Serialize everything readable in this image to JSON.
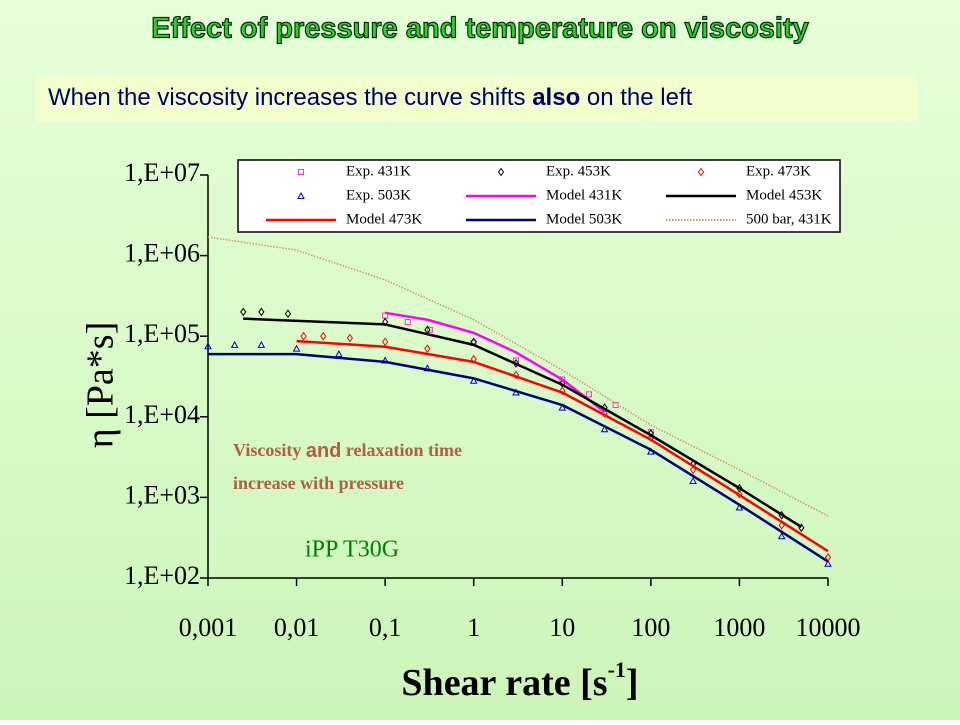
{
  "chart_data": {
    "type": "line",
    "title": "Effect of pressure and temperature on viscosity",
    "subtitle_parts": [
      "When the viscosity increases the curve shifts ",
      "also",
      " on the left"
    ],
    "x_label": "Shear rate [s",
    "x_label_sup": "-1",
    "x_label_end": "]",
    "y_label": "η [Pa*s]",
    "annotation_parts": [
      "Viscosity ",
      "and",
      " relaxation time",
      "increase with pressure"
    ],
    "annotation2": "iPP T30G",
    "x_log": true,
    "y_log": true,
    "xlim": [
      0.001,
      10000
    ],
    "ylim": [
      100,
      10000000
    ],
    "xticks": [
      {
        "value": 0.001,
        "label": "0,001"
      },
      {
        "value": 0.01,
        "label": "0,01"
      },
      {
        "value": 0.1,
        "label": "0,1"
      },
      1,
      10,
      100,
      1000,
      10000
    ],
    "yticks": [
      {
        "value": 100,
        "label": "1,E+02"
      },
      {
        "value": 1000,
        "label": "1,E+03"
      },
      {
        "value": 10000,
        "label": "1,E+04"
      },
      {
        "value": 100000,
        "label": "1,E+05"
      },
      {
        "value": 1000000,
        "label": "1,E+06"
      },
      {
        "value": 10000000,
        "label": "1,E+07"
      }
    ],
    "series": [
      {
        "name": "Exp. 431K",
        "color": "#ff33cc",
        "marker": "square",
        "x": [
          0.1,
          0.18,
          0.32,
          1,
          3,
          10,
          20,
          40,
          100
        ],
        "values": [
          180000,
          150000,
          120000,
          82000,
          50000,
          29000,
          19000,
          14000,
          6500
        ]
      },
      {
        "name": "Exp. 453K",
        "color": "#000000",
        "marker": "diamond",
        "x": [
          0.0025,
          0.004,
          0.008,
          0.1,
          0.3,
          1,
          3,
          10,
          30,
          100,
          300,
          1000,
          3000,
          5000
        ],
        "values": [
          200000,
          200000,
          190000,
          150000,
          120000,
          85000,
          46000,
          26000,
          13000,
          6200,
          2600,
          1300,
          600,
          420
        ]
      },
      {
        "name": "Exp. 473K",
        "color": "#ff0000",
        "marker": "diamond",
        "x": [
          0.012,
          0.02,
          0.04,
          0.1,
          0.3,
          1,
          3,
          10,
          30,
          100,
          300,
          1000,
          3000,
          10000
        ],
        "values": [
          100000,
          100000,
          95000,
          85000,
          70000,
          52000,
          33000,
          21000,
          11000,
          5500,
          2200,
          1100,
          450,
          180
        ]
      },
      {
        "name": "Exp. 503K",
        "color": "#0000cc",
        "marker": "triangle",
        "x": [
          0.001,
          0.002,
          0.004,
          0.01,
          0.03,
          0.1,
          0.3,
          1,
          3,
          10,
          30,
          100,
          300,
          1000,
          3000,
          10000
        ],
        "values": [
          75000,
          78000,
          78000,
          70000,
          60000,
          50000,
          40000,
          28000,
          20000,
          13000,
          7000,
          3700,
          1600,
          750,
          330,
          150
        ]
      },
      {
        "name": "Model 431K",
        "color": "#ff00ff",
        "marker": "line",
        "x": [
          0.1,
          0.3,
          1,
          3,
          10,
          30
        ],
        "values": [
          195000,
          160000,
          110000,
          63000,
          29000,
          11500
        ]
      },
      {
        "name": "Model 453K",
        "color": "#000000",
        "marker": "line",
        "x": [
          0.0025,
          0.1,
          1,
          10,
          100,
          1000,
          5000
        ],
        "values": [
          165000,
          140000,
          78000,
          25000,
          5900,
          1300,
          430
        ]
      },
      {
        "name": "Model 473K",
        "color": "#ff0000",
        "marker": "line",
        "x": [
          0.01,
          0.1,
          1,
          10,
          100,
          1000,
          10000
        ],
        "values": [
          87000,
          74000,
          48000,
          20000,
          5200,
          1070,
          215
        ]
      },
      {
        "name": "Model 503K",
        "color": "#000080",
        "marker": "line",
        "x": [
          0.001,
          0.01,
          0.1,
          1,
          10,
          100,
          1000,
          10000
        ],
        "values": [
          60000,
          60000,
          48000,
          30000,
          14000,
          3900,
          810,
          160
        ]
      },
      {
        "name": "500 bar, 431K",
        "color": "#cc9966",
        "marker": "dotted",
        "x": [
          0.001,
          0.01,
          0.1,
          1,
          10,
          100,
          1000,
          10000
        ],
        "values": [
          1700000,
          1170000,
          500000,
          160000,
          38000,
          7900,
          2200,
          590
        ]
      }
    ]
  }
}
